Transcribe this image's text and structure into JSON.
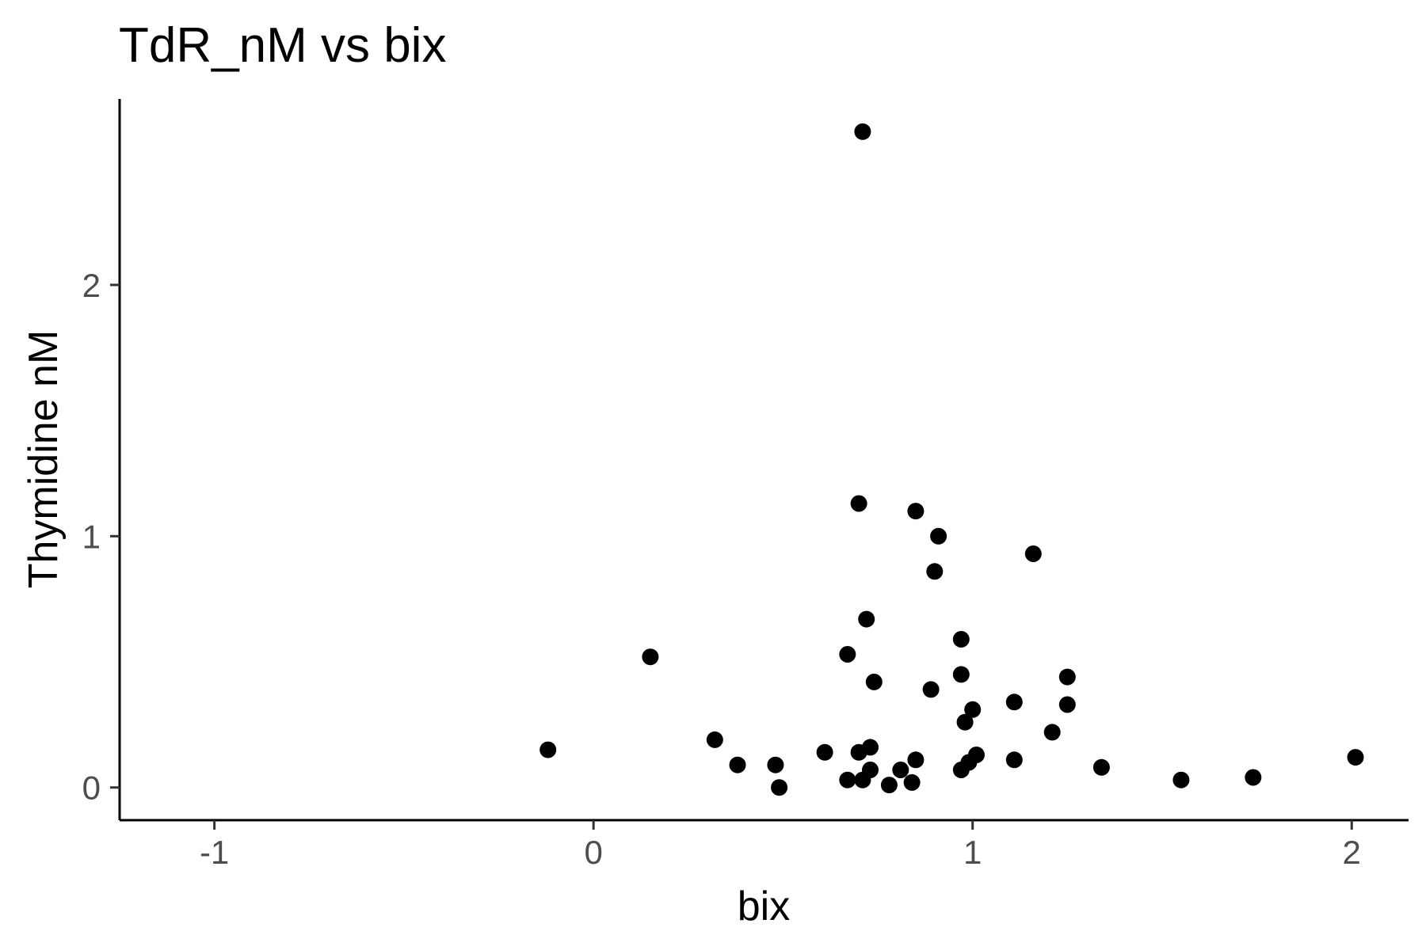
{
  "chart_data": {
    "type": "scatter",
    "title": "TdR_nM vs bix",
    "xlabel": "bix",
    "ylabel": "Thymidine nM",
    "xlim": [
      -1.25,
      2.15
    ],
    "ylim": [
      -0.13,
      2.74
    ],
    "x_ticks": [
      -1,
      0,
      1,
      2
    ],
    "y_ticks": [
      0,
      1,
      2
    ],
    "grid": false,
    "legend": "none",
    "point_color": "#000000",
    "points": [
      {
        "x": 0.71,
        "y": 2.61
      },
      {
        "x": 0.7,
        "y": 1.13
      },
      {
        "x": 0.85,
        "y": 1.1
      },
      {
        "x": 0.91,
        "y": 1.0
      },
      {
        "x": 1.16,
        "y": 0.93
      },
      {
        "x": 0.9,
        "y": 0.86
      },
      {
        "x": 0.72,
        "y": 0.67
      },
      {
        "x": 0.97,
        "y": 0.59
      },
      {
        "x": 0.15,
        "y": 0.52
      },
      {
        "x": 0.67,
        "y": 0.53
      },
      {
        "x": 0.97,
        "y": 0.45
      },
      {
        "x": 1.25,
        "y": 0.44
      },
      {
        "x": 0.74,
        "y": 0.42
      },
      {
        "x": 0.89,
        "y": 0.39
      },
      {
        "x": 1.11,
        "y": 0.34
      },
      {
        "x": 1.25,
        "y": 0.33
      },
      {
        "x": 1.0,
        "y": 0.31
      },
      {
        "x": 0.98,
        "y": 0.26
      },
      {
        "x": 1.21,
        "y": 0.22
      },
      {
        "x": 0.32,
        "y": 0.19
      },
      {
        "x": -0.12,
        "y": 0.15
      },
      {
        "x": 0.61,
        "y": 0.14
      },
      {
        "x": 0.7,
        "y": 0.14
      },
      {
        "x": 0.73,
        "y": 0.16
      },
      {
        "x": 1.01,
        "y": 0.13
      },
      {
        "x": 2.01,
        "y": 0.12
      },
      {
        "x": 0.85,
        "y": 0.11
      },
      {
        "x": 1.11,
        "y": 0.11
      },
      {
        "x": 0.99,
        "y": 0.1
      },
      {
        "x": 0.38,
        "y": 0.09
      },
      {
        "x": 0.48,
        "y": 0.09
      },
      {
        "x": 1.34,
        "y": 0.08
      },
      {
        "x": 0.73,
        "y": 0.07
      },
      {
        "x": 0.81,
        "y": 0.07
      },
      {
        "x": 0.97,
        "y": 0.07
      },
      {
        "x": 1.74,
        "y": 0.04
      },
      {
        "x": 0.67,
        "y": 0.03
      },
      {
        "x": 0.71,
        "y": 0.03
      },
      {
        "x": 1.55,
        "y": 0.03
      },
      {
        "x": 0.78,
        "y": 0.01
      },
      {
        "x": 0.84,
        "y": 0.02
      },
      {
        "x": 0.49,
        "y": 0.0
      }
    ]
  }
}
